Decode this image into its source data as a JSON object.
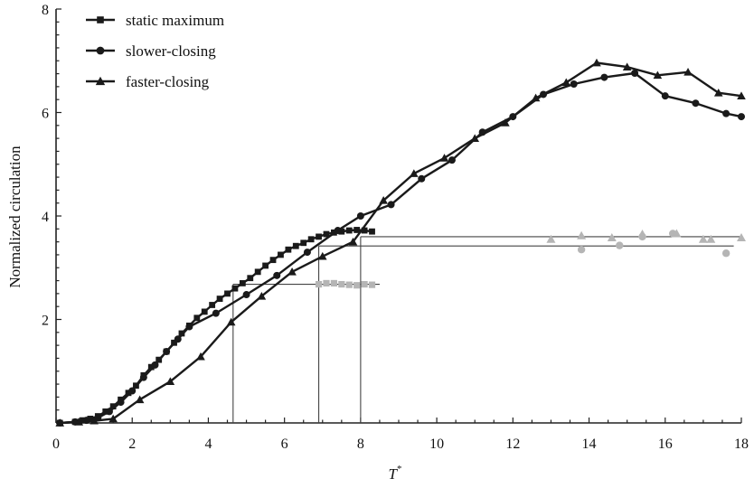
{
  "chart_data": {
    "type": "line",
    "xlabel": "T",
    "xlabel_superscript": "*",
    "ylabel": "Normalized circulation",
    "xlim": [
      0,
      18
    ],
    "ylim": [
      0,
      8
    ],
    "x_ticks": [
      0,
      2,
      4,
      6,
      8,
      10,
      12,
      14,
      16,
      18
    ],
    "y_ticks": [
      2,
      4,
      6,
      8
    ],
    "grid": false,
    "legend_position": "top-left",
    "series": [
      {
        "name": "static maximum",
        "marker": "square",
        "x": [
          0.1,
          0.5,
          0.7,
          0.9,
          1.1,
          1.3,
          1.5,
          1.7,
          1.9,
          2.1,
          2.3,
          2.5,
          2.7,
          2.9,
          3.1,
          3.3,
          3.5,
          3.7,
          3.9,
          4.1,
          4.3,
          4.5,
          4.7,
          4.9,
          5.1,
          5.3,
          5.5,
          5.7,
          5.9,
          6.1,
          6.3,
          6.5,
          6.7,
          6.9,
          7.1,
          7.3,
          7.5,
          7.7,
          7.9,
          8.1,
          8.3
        ],
        "y": [
          0.0,
          0.02,
          0.05,
          0.08,
          0.13,
          0.22,
          0.32,
          0.45,
          0.58,
          0.72,
          0.92,
          1.08,
          1.22,
          1.38,
          1.55,
          1.73,
          1.88,
          2.03,
          2.15,
          2.28,
          2.4,
          2.5,
          2.6,
          2.7,
          2.8,
          2.92,
          3.04,
          3.15,
          3.25,
          3.35,
          3.42,
          3.48,
          3.55,
          3.6,
          3.65,
          3.68,
          3.7,
          3.72,
          3.73,
          3.72,
          3.7
        ]
      },
      {
        "name": "slower-closing",
        "marker": "circle",
        "x": [
          0.1,
          0.5,
          0.8,
          1.1,
          1.4,
          1.7,
          2.0,
          2.3,
          2.6,
          2.9,
          3.2,
          3.5,
          4.2,
          5.0,
          5.8,
          6.6,
          7.4,
          8.0,
          8.8,
          9.6,
          10.4,
          11.2,
          12.0,
          12.8,
          13.6,
          14.4,
          15.2,
          16.0,
          16.8,
          17.6,
          18.0
        ],
        "y": [
          0.0,
          0.02,
          0.05,
          0.1,
          0.22,
          0.4,
          0.62,
          0.88,
          1.12,
          1.38,
          1.62,
          1.86,
          2.12,
          2.48,
          2.85,
          3.3,
          3.72,
          4.0,
          4.22,
          4.72,
          5.08,
          5.62,
          5.92,
          6.35,
          6.55,
          6.68,
          6.76,
          6.32,
          6.18,
          5.98,
          5.92
        ]
      },
      {
        "name": "faster-closing",
        "marker": "triangle",
        "x": [
          0.1,
          0.6,
          1.0,
          1.5,
          2.2,
          3.0,
          3.8,
          4.6,
          5.4,
          6.2,
          7.0,
          7.8,
          8.6,
          9.4,
          10.2,
          11.0,
          11.8,
          12.6,
          13.4,
          14.2,
          15.0,
          15.8,
          16.6,
          17.4,
          18.0
        ],
        "y": [
          0.0,
          0.02,
          0.04,
          0.08,
          0.45,
          0.8,
          1.28,
          1.95,
          2.45,
          2.92,
          3.22,
          3.5,
          4.3,
          4.82,
          5.12,
          5.5,
          5.8,
          6.28,
          6.58,
          6.96,
          6.88,
          6.72,
          6.78,
          6.38,
          6.32
        ]
      }
    ],
    "reference_lines": [
      {
        "series": "faster-closing",
        "x_at": 4.65,
        "level": 2.68,
        "x_end": 8.5
      },
      {
        "series": "static maximum",
        "x_at": 6.9,
        "level": 3.42,
        "x_end": 17.8
      },
      {
        "series": "slower-closing",
        "x_at": 8.0,
        "level": 3.6,
        "x_end": 18.0
      }
    ],
    "grey_points": [
      {
        "marker": "square",
        "x": [
          6.9,
          7.1,
          7.3,
          7.5,
          7.7,
          7.9,
          8.1,
          8.3
        ],
        "y": [
          2.68,
          2.7,
          2.7,
          2.68,
          2.67,
          2.66,
          2.68,
          2.67
        ]
      },
      {
        "marker": "circle",
        "x": [
          13.8,
          14.8,
          15.4,
          16.2,
          17.6
        ],
        "y": [
          3.35,
          3.43,
          3.6,
          3.66,
          3.28
        ]
      },
      {
        "marker": "triangle",
        "x": [
          13.0,
          13.8,
          14.6,
          15.4,
          16.3,
          17.0,
          17.2,
          18.0
        ],
        "y": [
          3.55,
          3.62,
          3.58,
          3.65,
          3.66,
          3.55,
          3.55,
          3.58
        ]
      }
    ]
  }
}
